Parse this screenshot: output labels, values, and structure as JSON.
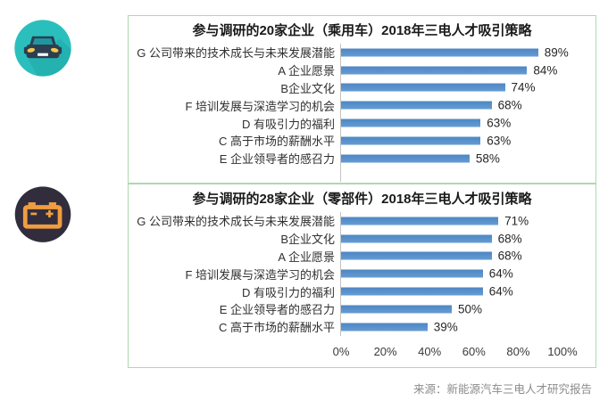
{
  "page": {
    "source_note": "来源：新能源汽车三电人才研究报告"
  },
  "icons": [
    {
      "name": "car-icon",
      "meaning": "乘用车 (passenger vehicle)"
    },
    {
      "name": "battery-icon",
      "meaning": "零部件 (components)"
    }
  ],
  "colors": {
    "bar": "#5B94CE",
    "bar_top": "#4D86C3",
    "bar_bottom": "#669CD4",
    "border": "#AFD8AF",
    "axis_line": "#C3C3C3",
    "text": "#3D3D3D",
    "source_text": "#8C8C8C",
    "teal": "#2ABFBC",
    "teal_shadow": "#1FA7A6",
    "car_body": "#2D3E50",
    "car_glass": "#1F96A0",
    "headlight": "#F5C84C",
    "plate": "#F4F6F6",
    "battery_bg": "#322D3D",
    "battery_fg": "#F09D3F"
  },
  "chart_data": [
    {
      "type": "bar",
      "orientation": "horizontal",
      "title": "参与调研的20家企业（乘用车）2018年三电人才吸引策略",
      "categories": [
        "G 公司带来的技术成长与未来发展潜能",
        "A 企业愿景",
        "B企业文化",
        "F 培训发展与深造学习的机会",
        "D 有吸引力的福利",
        "C 高于市场的薪酬水平",
        "E 企业领导者的感召力"
      ],
      "values": [
        89,
        84,
        74,
        68,
        63,
        63,
        58
      ],
      "value_labels": [
        "89%",
        "84%",
        "74%",
        "68%",
        "63%",
        "63%",
        "58%"
      ],
      "xlim": [
        0,
        100
      ],
      "tick_labels": [],
      "tick_values": [],
      "grid": false,
      "legend": false
    },
    {
      "type": "bar",
      "orientation": "horizontal",
      "title": "参与调研的28家企业（零部件）2018年三电人才吸引策略",
      "categories": [
        "G 公司带来的技术成长与未来发展潜能",
        "B企业文化",
        "A 企业愿景",
        "F 培训发展与深造学习的机会",
        "D 有吸引力的福利",
        "E 企业领导者的感召力",
        "C 高于市场的薪酬水平"
      ],
      "values": [
        71,
        68,
        68,
        64,
        64,
        50,
        39
      ],
      "value_labels": [
        "71%",
        "68%",
        "68%",
        "64%",
        "64%",
        "50%",
        "39%"
      ],
      "xlim": [
        0,
        100
      ],
      "tick_labels": [
        "0%",
        "20%",
        "40%",
        "60%",
        "80%",
        "100%"
      ],
      "tick_values": [
        0,
        20,
        40,
        60,
        80,
        100
      ],
      "grid": false,
      "legend": false
    }
  ]
}
